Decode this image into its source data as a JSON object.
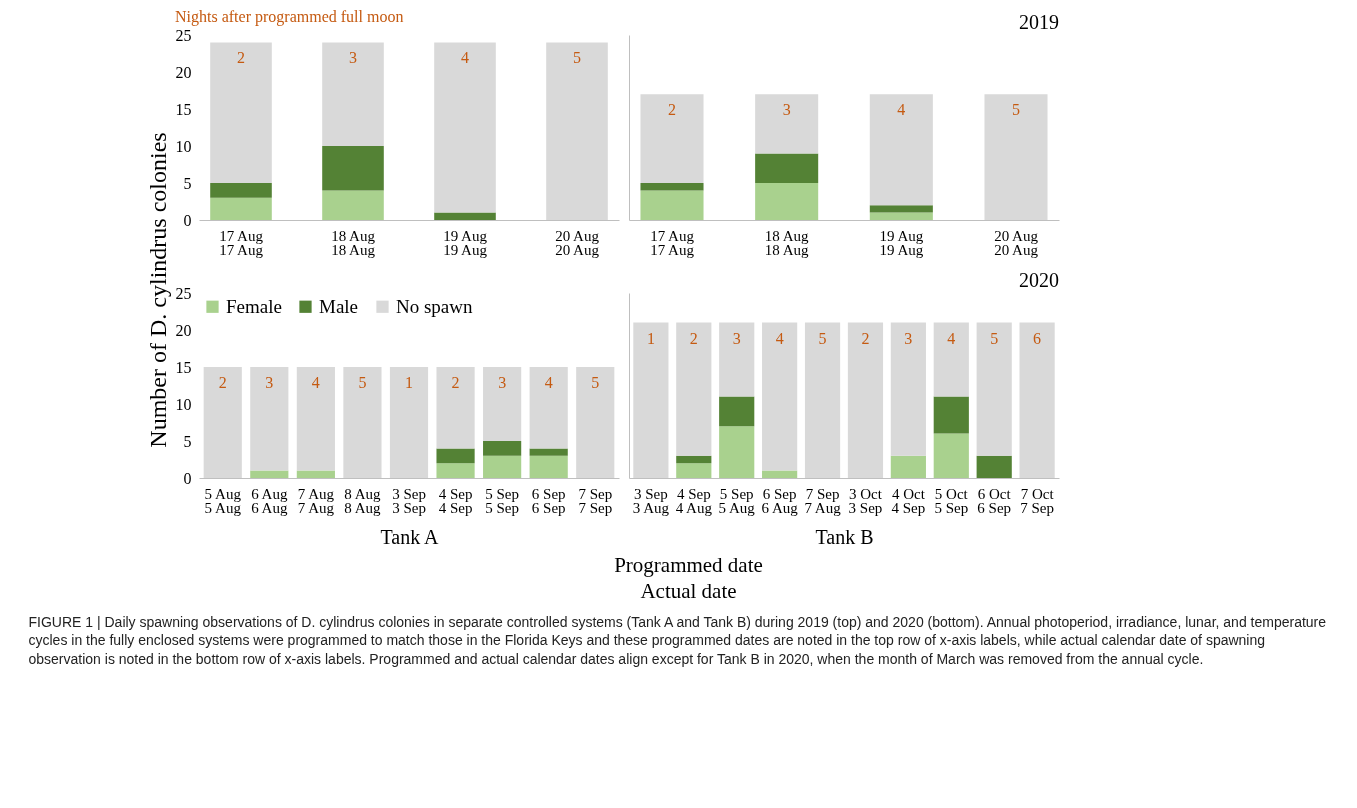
{
  "chart_data": [
    {
      "type": "bar",
      "stacked": true,
      "categories": [
        "17 Aug\n17 Aug",
        "18 Aug\n18 Aug",
        "19 Aug\n19 Aug",
        "20 Aug\n20 Aug"
      ],
      "ylabel": "Number of D. cylindrus colonies",
      "ylim": [
        0,
        25
      ],
      "yticks": [
        0,
        5,
        10,
        15,
        20,
        25
      ],
      "annotations": [
        "Nights after programmed full moon",
        {
          "text": "2",
          "x": "17 Aug\n17 Aug",
          "y": 24
        },
        {
          "text": "3",
          "x": "18 Aug\n18 Aug",
          "y": 24
        },
        {
          "text": "4",
          "x": "19 Aug\n19 Aug",
          "y": 24
        },
        {
          "text": "5",
          "x": "20 Aug\n20 Aug",
          "y": 24
        }
      ],
      "series": [
        {
          "color": "#a9d18e",
          "values": [
            3,
            4,
            0,
            0
          ]
        },
        {
          "color": "#548235",
          "values": [
            2,
            6,
            1,
            0
          ]
        },
        {
          "color": "#d9d9d9",
          "values": [
            19,
            14,
            23,
            24
          ]
        }
      ]
    },
    {
      "type": "bar",
      "stacked": true,
      "categories": [
        "17 Aug\n17 Aug",
        "18 Aug\n18 Aug",
        "19 Aug\n19 Aug",
        "20 Aug\n20 Aug"
      ],
      "ylim": [
        0,
        25
      ],
      "tick_labels": "x",
      "annotations": [
        "2019",
        {
          "text": "2",
          "x": "17 Aug\n17 Aug",
          "y": 17
        },
        {
          "text": "3",
          "x": "18 Aug\n18 Aug",
          "y": 17
        },
        {
          "text": "4",
          "x": "19 Aug\n19 Aug",
          "y": 17
        },
        {
          "text": "5",
          "x": "20 Aug\n20 Aug",
          "y": 17
        }
      ],
      "series": [
        {
          "color": "#a9d18e",
          "values": [
            4,
            5,
            1,
            0
          ]
        },
        {
          "color": "#548235",
          "values": [
            1,
            4,
            1,
            0
          ]
        },
        {
          "color": "#d9d9d9",
          "values": [
            12,
            8,
            15,
            17
          ]
        }
      ]
    },
    {
      "type": "bar",
      "stacked": true,
      "categories": [
        "5 Aug\n5 Aug",
        "6 Aug\n6 Aug",
        "7 Aug\n7 Aug",
        "8 Aug\n8 Aug",
        "3 Sep\n3 Sep",
        "4 Sep\n4 Sep",
        "5 Sep\n5 Sep",
        "6 Sep\n6 Sep",
        "7 Sep\n7 Sep"
      ],
      "xlabel": "Tank A",
      "ylim": [
        0,
        25
      ],
      "yticks": [
        0,
        5,
        10,
        15,
        20,
        25
      ],
      "legend": "top left",
      "annotations": [
        {
          "text": "2",
          "x": "5 Aug\n5 Aug",
          "y": 15
        },
        {
          "text": "3",
          "x": "6 Aug\n6 Aug",
          "y": 15
        },
        {
          "text": "4",
          "x": "7 Aug\n7 Aug",
          "y": 15
        },
        {
          "text": "5",
          "x": "8 Aug\n8 Aug",
          "y": 15
        },
        {
          "text": "1",
          "x": "3 Sep\n3 Sep",
          "y": 15
        },
        {
          "text": "2",
          "x": "4 Sep\n4 Sep",
          "y": 15
        },
        {
          "text": "3",
          "x": "5 Sep\n5 Sep",
          "y": 15
        },
        {
          "text": "4",
          "x": "6 Sep\n6 Sep",
          "y": 15
        },
        {
          "text": "5",
          "x": "7 Sep\n7 Sep",
          "y": 15
        }
      ],
      "series": [
        {
          "name": "Female",
          "color": "#a9d18e",
          "values": [
            0,
            1,
            1,
            0,
            0,
            2,
            3,
            3,
            0
          ]
        },
        {
          "name": "Male",
          "color": "#548235",
          "values": [
            0,
            0,
            0,
            0,
            0,
            2,
            2,
            1,
            0
          ]
        },
        {
          "name": "No spawn",
          "color": "#d9d9d9",
          "values": [
            15,
            14,
            14,
            15,
            15,
            11,
            10,
            11,
            15
          ]
        }
      ]
    },
    {
      "type": "bar",
      "stacked": true,
      "categories": [
        "3 Sep\n3 Aug",
        "4 Sep\n4 Aug",
        "5 Sep\n5 Aug",
        "6 Sep\n6 Aug",
        "7 Sep\n7 Aug",
        "3 Oct\n3 Sep",
        "4 Oct\n4 Sep",
        "5 Oct\n5 Sep",
        "6 Oct\n6 Sep",
        "7 Oct\n7 Sep"
      ],
      "xlabel": "Tank B",
      "ylim": [
        0,
        25
      ],
      "tick_labels": "x",
      "annotations": [
        "2020",
        "Programmed date",
        "Actual date",
        "FIGURE 1 | Daily spawning observations of D. cylindrus colonies in separate controlled systems (Tank A and Tank B) during 2019 (top) and 2020 (bottom). Annual photoperiod, irradiance, lunar, and temperature cycles in the fully enclosed systems were programmed to match those in the Florida Keys and these programmed dates are noted in the top row of x-axis labels, while actual calendar date of spawning observation is noted in the bottom row of x-axis labels. Programmed and actual calendar dates align except for Tank B in 2020, when the month of March was removed from the annual cycle.",
        {
          "text": "1",
          "x": "3 Sep\n3 Aug",
          "y": 21
        },
        {
          "text": "2",
          "x": "4 Sep\n4 Aug",
          "y": 21
        },
        {
          "text": "3",
          "x": "5 Sep\n5 Aug",
          "y": 21
        },
        {
          "text": "4",
          "x": "6 Sep\n6 Aug",
          "y": 21
        },
        {
          "text": "5",
          "x": "7 Sep\n7 Aug",
          "y": 21
        },
        {
          "text": "2",
          "x": "3 Oct\n3 Sep",
          "y": 21
        },
        {
          "text": "3",
          "x": "4 Oct\n4 Sep",
          "y": 21
        },
        {
          "text": "4",
          "x": "5 Oct\n5 Sep",
          "y": 21
        },
        {
          "text": "5",
          "x": "6 Oct\n6 Sep",
          "y": 21
        },
        {
          "text": "6",
          "x": "7 Oct\n7 Sep",
          "y": 21
        }
      ],
      "series": [
        {
          "color": "#a9d18e",
          "values": [
            0,
            2,
            7,
            1,
            0,
            0,
            3,
            6,
            0,
            0
          ]
        },
        {
          "color": "#548235",
          "values": [
            0,
            1,
            4,
            0,
            0,
            0,
            0,
            5,
            3,
            0
          ]
        },
        {
          "color": "#d9d9d9",
          "values": [
            21,
            18,
            10,
            20,
            21,
            21,
            18,
            10,
            18,
            21
          ]
        }
      ]
    }
  ]
}
